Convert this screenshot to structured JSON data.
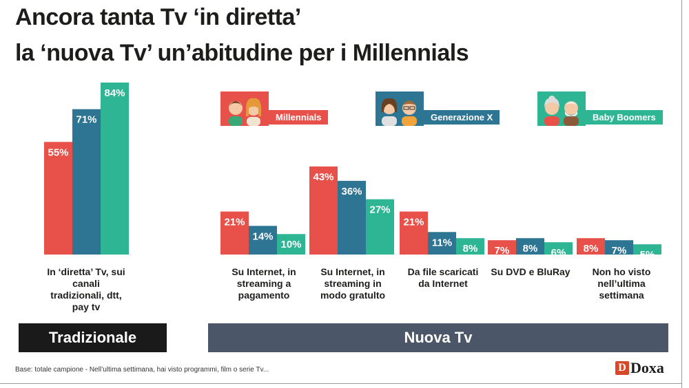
{
  "title": {
    "line1": "Ancora tanta Tv ‘in diretta’",
    "line2": "la ‘nuova Tv’ un’abitudine per i Millennials"
  },
  "colors": {
    "millennials": "#e8514a",
    "generazione_x": "#2e7593",
    "baby_boomers": "#2db594"
  },
  "sections": {
    "traditional": "Tradizionale",
    "new": "Nuova Tv"
  },
  "footnote": "Base: totale campione - Nell’ultima settimana, hai visto programmi, film o serie Tv...",
  "logo": {
    "mark": "D",
    "text": "Doxa"
  },
  "chart_data": {
    "type": "bar",
    "title": "Ancora tanta Tv ‘in diretta’ la ‘nuova Tv’ un’abitudine per i Millennials",
    "xlabel": "",
    "ylabel": "",
    "ylim": [
      0,
      100
    ],
    "grid": false,
    "legend_position": "top",
    "categories": [
      "In ‘diretta’ Tv, sui canali tradizionali, dtt, pay tv",
      "Su Internet, in streaming a pagamento",
      "Su Internet, in streaming in modo gratulto",
      "Da file scaricati da Internet",
      "Su DVD e BluRay",
      "Non ho visto nell’ultima settimana"
    ],
    "category_lines": [
      [
        "In ‘diretta’ Tv, sui",
        "canali",
        "tradizionali, dtt,",
        "pay tv"
      ],
      [
        "Su Internet, in",
        "streaming a",
        "pagamento"
      ],
      [
        "Su Internet, in",
        "streaming in",
        "modo gratulto"
      ],
      [
        "Da file scaricati",
        "da Internet"
      ],
      [
        "Su DVD e BluRay"
      ],
      [
        "Non ho visto",
        "nell’ultima",
        "settimana"
      ]
    ],
    "series": [
      {
        "name": "Millennials",
        "values": [
          55,
          21,
          43,
          21,
          7,
          8
        ]
      },
      {
        "name": "Generazione X",
        "values": [
          71,
          14,
          36,
          11,
          8,
          7
        ]
      },
      {
        "name": "Baby Boomers",
        "values": [
          84,
          10,
          27,
          8,
          6,
          5
        ]
      }
    ],
    "value_suffix": "%"
  }
}
